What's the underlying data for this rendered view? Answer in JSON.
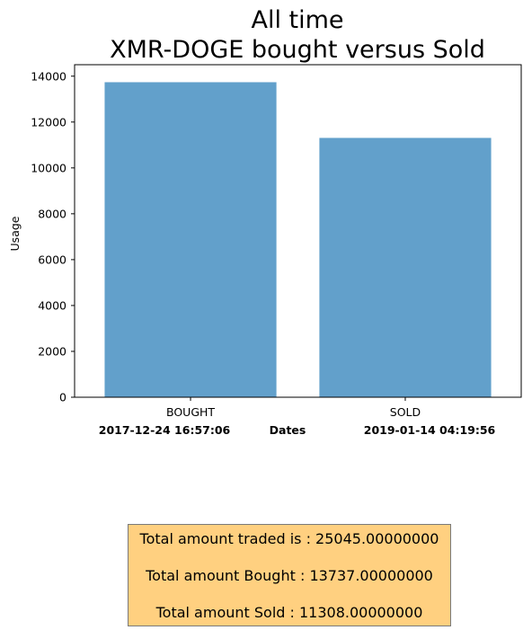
{
  "chart_data": {
    "type": "bar",
    "title": [
      "All time",
      "XMR-DOGE bought versus Sold"
    ],
    "categories": [
      "BOUGHT",
      "SOLD"
    ],
    "values": [
      13737,
      11308
    ],
    "ylabel": "Usage",
    "xlabel": "Dates",
    "ylim": [
      0,
      14500
    ],
    "yticks": [
      0,
      2000,
      4000,
      6000,
      8000,
      10000,
      12000,
      14000
    ],
    "ytick_labels": [
      "0",
      "2000",
      "4000",
      "6000",
      "8000",
      "10000",
      "12000",
      "14000"
    ],
    "bar_color": "#62a0cb",
    "grid": false,
    "annotations": {
      "start_date": "2017-12-24 16:57:06",
      "end_date": "2019-01-14 04:19:56"
    }
  },
  "summary": {
    "lines": [
      "Total amount traded is : 25045.00000000",
      "Total amount Bought : 13737.00000000",
      "Total amount Sold : 11308.00000000"
    ],
    "background": "#ffd080",
    "border": "#7a7a7a"
  }
}
